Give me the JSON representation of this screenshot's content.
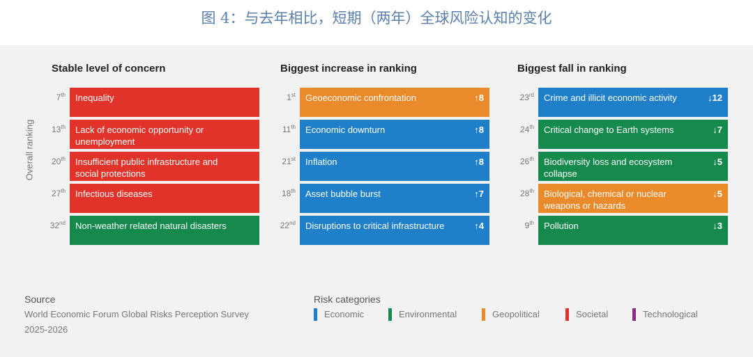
{
  "title": "图 4：与去年相比，短期（两年）全球风险认知的变化",
  "axis_label": "Overall ranking",
  "columns": [
    {
      "heading": "Stable level of concern",
      "items": [
        {
          "rank": "7",
          "suffix": "th",
          "label": "Inequality",
          "color": "#e2332b"
        },
        {
          "rank": "13",
          "suffix": "th",
          "label": "Lack of economic opportunity or unemployment",
          "color": "#e2332b"
        },
        {
          "rank": "20",
          "suffix": "th",
          "label": "Insufficient public infrastructure and social protections",
          "color": "#e2332b"
        },
        {
          "rank": "27",
          "suffix": "th",
          "label": "Infectious diseases",
          "color": "#e2332b"
        },
        {
          "rank": "32",
          "suffix": "nd",
          "label": "Non-weather related natural disasters",
          "color": "#168a4c"
        }
      ]
    },
    {
      "heading": "Biggest increase in ranking",
      "items": [
        {
          "rank": "1",
          "suffix": "st",
          "label": "Geoeconomic confrontation",
          "change": "↑8",
          "color": "#eb8a2b"
        },
        {
          "rank": "11",
          "suffix": "th",
          "label": "Economic downturn",
          "change": "↑8",
          "color": "#1f80c9"
        },
        {
          "rank": "21",
          "suffix": "st",
          "label": "Inflation",
          "change": "↑8",
          "color": "#1f80c9"
        },
        {
          "rank": "18",
          "suffix": "th",
          "label": "Asset bubble burst",
          "change": "↑7",
          "color": "#1f80c9"
        },
        {
          "rank": "22",
          "suffix": "nd",
          "label": "Disruptions to critical infrastructure",
          "change": "↑4",
          "color": "#1f80c9"
        }
      ]
    },
    {
      "heading": "Biggest fall in ranking",
      "items": [
        {
          "rank": "23",
          "suffix": "rd",
          "label": "Crime and illicit economic activity",
          "change": "↓12",
          "color": "#1f80c9"
        },
        {
          "rank": "24",
          "suffix": "th",
          "label": "Critical change to Earth systems",
          "change": "↓7",
          "color": "#168a4c"
        },
        {
          "rank": "26",
          "suffix": "th",
          "label": "Biodiversity loss and ecosystem collapse",
          "change": "↓5",
          "color": "#168a4c"
        },
        {
          "rank": "28",
          "suffix": "th",
          "label": "Biological, chemical or nuclear weapons or hazards",
          "change": "↓5",
          "color": "#eb8a2b"
        },
        {
          "rank": "9",
          "suffix": "th",
          "label": "Pollution",
          "change": "↓3",
          "color": "#168a4c"
        }
      ]
    }
  ],
  "source": {
    "heading": "Source",
    "lines": [
      "World Economic Forum Global Risks Perception Survey",
      "2025-2026"
    ]
  },
  "legend": {
    "heading": "Risk categories",
    "items": [
      {
        "name": "Economic",
        "color": "#1f80c9"
      },
      {
        "name": "Environmental",
        "color": "#168a4c"
      },
      {
        "name": "Geopolitical",
        "color": "#eb8a2b"
      },
      {
        "name": "Societal",
        "color": "#e2332b"
      },
      {
        "name": "Technological",
        "color": "#8b2a86"
      }
    ]
  }
}
